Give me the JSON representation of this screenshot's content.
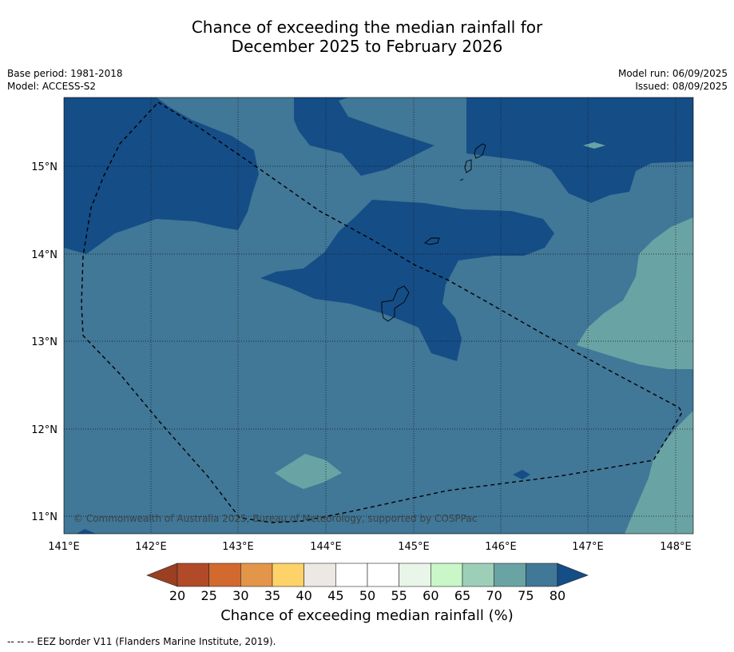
{
  "title_line1": "Chance of exceeding the median rainfall for",
  "title_line2": "December 2025 to February 2026",
  "meta_left": [
    "Base period: 1981-2018",
    "Model: ACCESS-S2"
  ],
  "meta_right": [
    "Model run: 06/09/2025",
    "Issued: 08/09/2025"
  ],
  "copyright": "© Commonwealth of Australia 2025, Bureau of Meteorology, supported by COSPPac",
  "lon_ticks": [
    "141°E",
    "142°E",
    "143°E",
    "144°E",
    "145°E",
    "146°E",
    "147°E",
    "148°E"
  ],
  "lat_ticks": [
    "15°N",
    "14°N",
    "13°N",
    "12°N",
    "11°N"
  ],
  "colorbar": {
    "title": "Chance of exceeding median rainfall (%)",
    "ticks": [
      "20",
      "25",
      "30",
      "35",
      "40",
      "45",
      "50",
      "55",
      "60",
      "65",
      "70",
      "75",
      "80"
    ],
    "colors": [
      "#b04a28",
      "#d2692f",
      "#e3954a",
      "#fdd269",
      "#ece8e3",
      "#ffffff",
      "#ffffff",
      "#e8f5e8",
      "#c9f7c8",
      "#9dcfb8",
      "#6aa3a4",
      "#417797"
    ],
    "under_color": "#9a3f22",
    "over_color": "#154d86"
  },
  "legend_colors": {
    "p70_75": "#6aa3a4",
    "p75_80": "#417797",
    "p80_plus": "#154d86"
  },
  "footnote": "--  --  -- EEZ border V11 (Flanders Marine Institute, 2019)."
}
